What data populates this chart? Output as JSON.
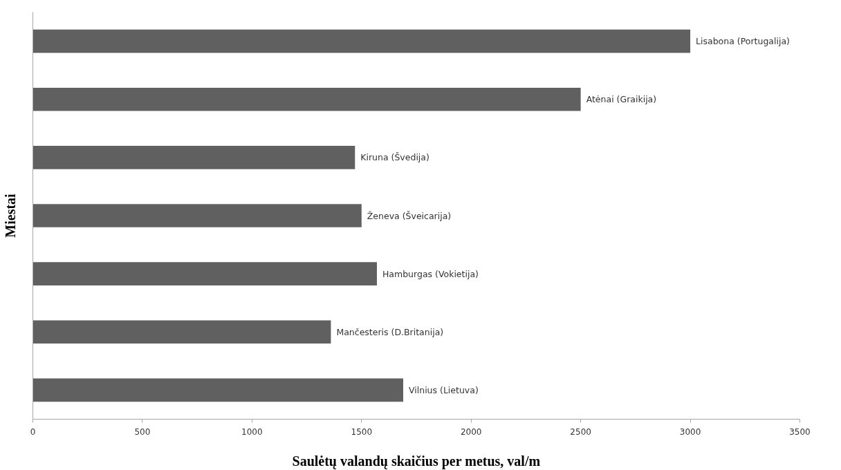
{
  "chart_data": {
    "type": "bar",
    "orientation": "horizontal",
    "categories": [
      "Lisabona (Portugalija)",
      "Atėnai (Graikija)",
      "Kiruna (Švedija)",
      "Ženeva (Šveicarija)",
      "Hamburgas (Vokietija)",
      "Mančesteris (D.Britanija)",
      "Vilnius (Lietuva)"
    ],
    "values": [
      3000,
      2500,
      1470,
      1500,
      1570,
      1360,
      1690
    ],
    "color": "#606060",
    "xlabel": "Saulėtų valandų skaičius per metus, val/m",
    "ylabel": "Miestai",
    "xlim": [
      0,
      3500
    ],
    "xticks": [
      0,
      500,
      1000,
      1500,
      2000,
      2500,
      3000,
      3500
    ],
    "grid": false,
    "tick_labels": "x"
  }
}
